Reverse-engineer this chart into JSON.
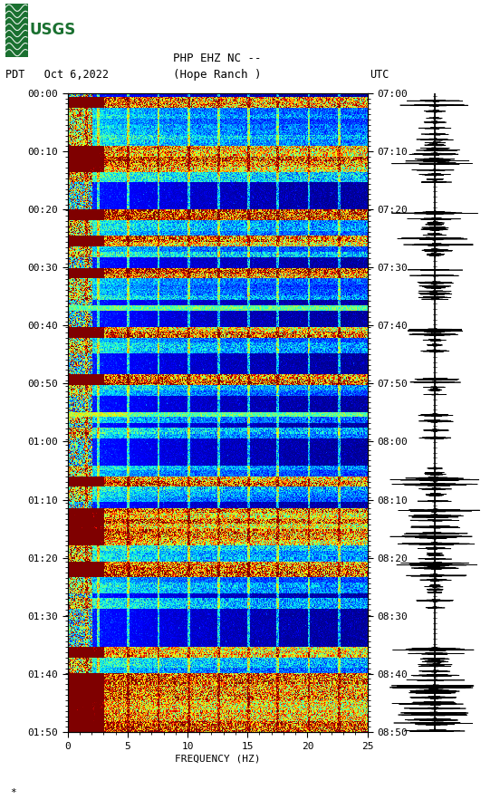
{
  "title_line1": "PHP EHZ NC --",
  "title_line2": "(Hope Ranch )",
  "left_label": "PDT   Oct 6,2022",
  "right_label": "UTC",
  "xlabel": "FREQUENCY (HZ)",
  "freq_min": 0,
  "freq_max": 25,
  "left_yticks": [
    "00:00",
    "00:10",
    "00:20",
    "00:30",
    "00:40",
    "00:50",
    "01:00",
    "01:10",
    "01:20",
    "01:30",
    "01:40",
    "01:50"
  ],
  "right_yticks": [
    "07:00",
    "07:10",
    "07:20",
    "07:30",
    "07:40",
    "07:50",
    "08:00",
    "08:10",
    "08:20",
    "08:30",
    "08:40",
    "08:50"
  ],
  "xticks": [
    0,
    5,
    10,
    15,
    20,
    25
  ],
  "fig_width": 5.52,
  "fig_height": 8.93,
  "bg_color": "#ffffff",
  "usgs_green": "#1a7030",
  "spectrogram_rows": 660,
  "spectrogram_cols": 350,
  "n_minutes": 120,
  "seed": 12345
}
